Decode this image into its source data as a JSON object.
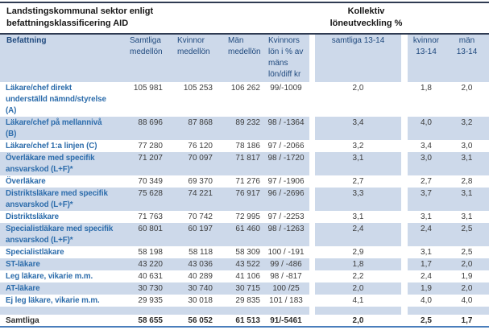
{
  "title": {
    "left": "Landstingskommunal sektor enligt\nbefattningsklassificering AID",
    "right": "Kollektiv\nlöneutveckling %"
  },
  "colors": {
    "band_blue": "#cdd9ea",
    "header_text": "#1f497d",
    "label_text": "#2c6cab",
    "value_text": "#3d3d3d",
    "rule_dark": "#2f3b52",
    "rule_bottom_blue": "#4a7ebc"
  },
  "table": {
    "headers": {
      "befattning": "Befattning",
      "samtliga_medellon": "Samtliga\nmedellön",
      "kvinnor_medellon": "Kvinnor\nmedellön",
      "man_medellon": "Män\nmedellön",
      "kvinnors_lon": "Kvinnors\nlön i % av\nmäns\nlön/diff kr",
      "samtliga_1314": "samtliga 13-14",
      "kvinnor_1314": "kvinnor\n13-14",
      "man_1314": "män\n13-14"
    },
    "rows": [
      {
        "befattning": "Läkare/chef direkt\nunderställd nämnd/styrelse\n(A)",
        "samtliga": "105 981",
        "kvinnor": "105 253",
        "man": "106 262",
        "andel": "99/-1009",
        "utv_samtliga": "2,0",
        "utv_kvinnor": "1,8",
        "utv_man": "2,0",
        "shaded": false
      },
      {
        "befattning": "Läkare/chef på mellannivå\n(B)",
        "samtliga": "88 696",
        "kvinnor": "87 868",
        "man": "89 232",
        "andel": "98 / -1364",
        "utv_samtliga": "3,4",
        "utv_kvinnor": "4,0",
        "utv_man": "3,2",
        "shaded": true
      },
      {
        "befattning": "Läkare/chef 1:a linjen (C)",
        "samtliga": "77 280",
        "kvinnor": "76 120",
        "man": "78 186",
        "andel": "97 / -2066",
        "utv_samtliga": "3,2",
        "utv_kvinnor": "3,4",
        "utv_man": "3,0",
        "shaded": false
      },
      {
        "befattning": "Överläkare med specifik\nansvarskod (L+F)*",
        "samtliga": "71 207",
        "kvinnor": "70 097",
        "man": "71 817",
        "andel": "98 / -1720",
        "utv_samtliga": "3,1",
        "utv_kvinnor": "3,0",
        "utv_man": "3,1",
        "shaded": true
      },
      {
        "befattning": "Överläkare",
        "samtliga": "70 349",
        "kvinnor": "69 370",
        "man": "71 276",
        "andel": "97 / -1906",
        "utv_samtliga": "2,7",
        "utv_kvinnor": "2,7",
        "utv_man": "2,8",
        "shaded": false
      },
      {
        "befattning": "Distriktsläkare med specifik\nansvarskod (L+F)*",
        "samtliga": "75 628",
        "kvinnor": "74 221",
        "man": "76 917",
        "andel": "96 / -2696",
        "utv_samtliga": "3,3",
        "utv_kvinnor": "3,7",
        "utv_man": "3,1",
        "shaded": true
      },
      {
        "befattning": "Distriktsläkare",
        "samtliga": "71 763",
        "kvinnor": "70 742",
        "man": "72 995",
        "andel": "97 / -2253",
        "utv_samtliga": "3,1",
        "utv_kvinnor": "3,1",
        "utv_man": "3,1",
        "shaded": false
      },
      {
        "befattning": "Specialistläkare med specifik\nansvarskod (L+F)*",
        "samtliga": "60 801",
        "kvinnor": "60 197",
        "man": "61 460",
        "andel": "98 / -1263",
        "utv_samtliga": "2,4",
        "utv_kvinnor": "2,4",
        "utv_man": "2,5",
        "shaded": true
      },
      {
        "befattning": "Specialistläkare",
        "samtliga": "58 198",
        "kvinnor": "58 118",
        "man": "58 309",
        "andel": "100 / -191",
        "utv_samtliga": "2,9",
        "utv_kvinnor": "3,1",
        "utv_man": "2,5",
        "shaded": false
      },
      {
        "befattning": "ST-läkare",
        "samtliga": "43 220",
        "kvinnor": "43 036",
        "man": "43 522",
        "andel": "99 / -486",
        "utv_samtliga": "1,8",
        "utv_kvinnor": "1,7",
        "utv_man": "2,0",
        "shaded": true
      },
      {
        "befattning": "Leg läkare, vikarie m.m.",
        "samtliga": "40 631",
        "kvinnor": "40 289",
        "man": "41 106",
        "andel": "98 / -817",
        "utv_samtliga": "2,2",
        "utv_kvinnor": "2,4",
        "utv_man": "1,9",
        "shaded": false
      },
      {
        "befattning": "AT-läkare",
        "samtliga": "30 730",
        "kvinnor": "30 740",
        "man": "30 715",
        "andel": "100 /25",
        "utv_samtliga": "2,0",
        "utv_kvinnor": "1,9",
        "utv_man": "2,0",
        "shaded": true
      },
      {
        "befattning": "Ej leg läkare, vikarie m.m.",
        "samtliga": "29 935",
        "kvinnor": "30 018",
        "man": "29 835",
        "andel": "101 / 183",
        "utv_samtliga": "4,1",
        "utv_kvinnor": "4,0",
        "utv_man": "4,0",
        "shaded": false
      }
    ],
    "total": {
      "befattning": "Samtliga",
      "samtliga": "58 655",
      "kvinnor": "56 052",
      "man": "61 513",
      "andel": "91/-5461",
      "utv_samtliga": "2,0",
      "utv_kvinnor": "2,5",
      "utv_man": "1,7"
    }
  }
}
